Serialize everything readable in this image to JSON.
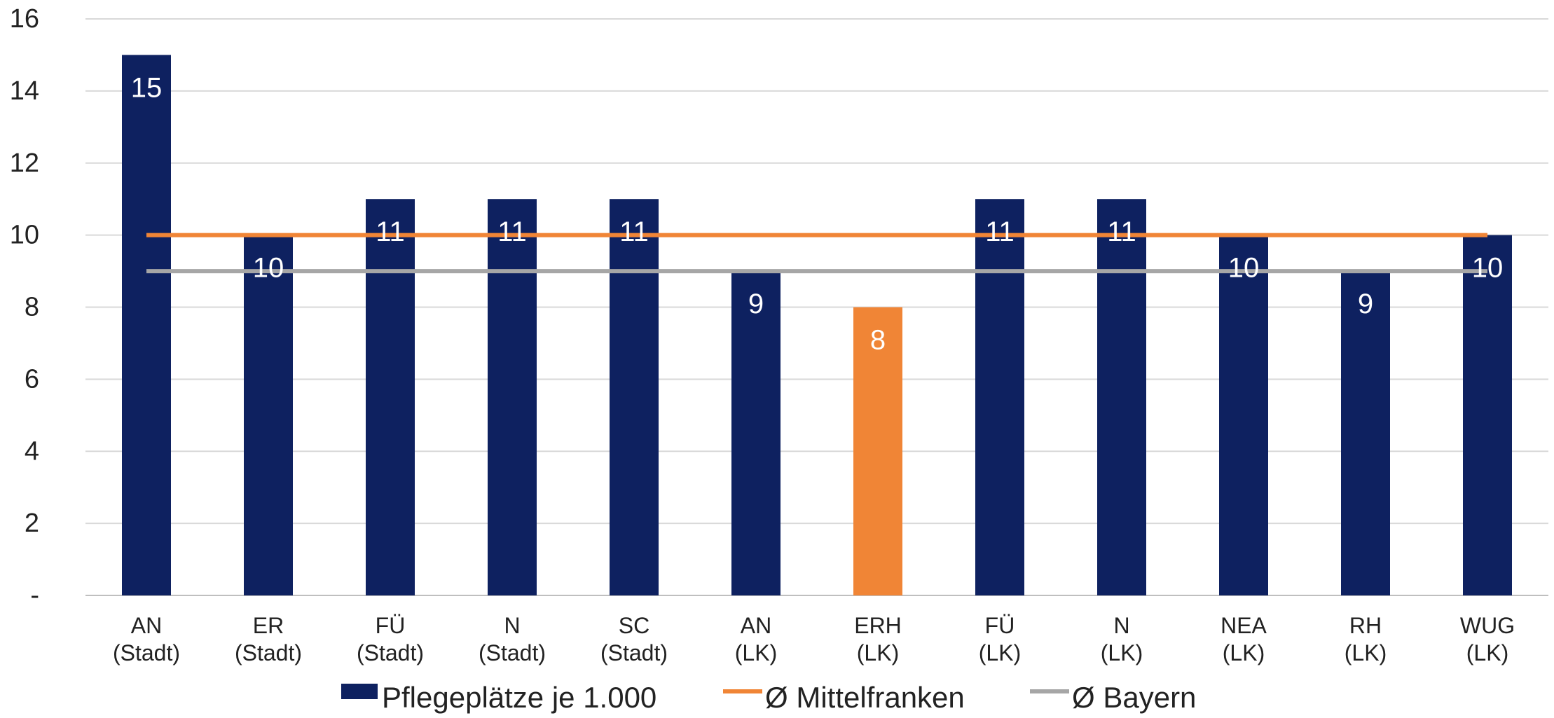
{
  "chart_data": {
    "type": "bar",
    "categories": [
      [
        "AN",
        "(Stadt)"
      ],
      [
        "ER",
        "(Stadt)"
      ],
      [
        "FÜ",
        "(Stadt)"
      ],
      [
        "N",
        "(Stadt)"
      ],
      [
        "SC",
        "(Stadt)"
      ],
      [
        "AN",
        "(LK)"
      ],
      [
        "ERH",
        "(LK)"
      ],
      [
        "FÜ",
        "(LK)"
      ],
      [
        "N",
        "(LK)"
      ],
      [
        "NEA",
        "(LK)"
      ],
      [
        "RH",
        "(LK)"
      ],
      [
        "WUG",
        "(LK)"
      ]
    ],
    "series": [
      {
        "name": "Pflegeplätze je 1.000",
        "kind": "bar",
        "values": [
          15,
          10,
          11,
          11,
          11,
          9,
          8,
          11,
          11,
          10,
          9,
          10
        ],
        "data_labels": [
          "15",
          "10",
          "11",
          "11",
          "11",
          "9",
          "8",
          "11",
          "11",
          "10",
          "9",
          "10"
        ],
        "color": "#0E2160",
        "highlight_index": 6,
        "highlight_color": "#F08536"
      },
      {
        "name": "Ø Mittelfranken",
        "kind": "line",
        "value": 10,
        "color": "#F08536"
      },
      {
        "name": "Ø Bayern",
        "kind": "line",
        "value": 9,
        "color": "#A6A6A6"
      }
    ],
    "y_ticks": [
      "-",
      "2",
      "4",
      "6",
      "8",
      "10",
      "12",
      "14",
      "16"
    ],
    "ylim": [
      0,
      16
    ],
    "grid": true,
    "legend_position": "bottom",
    "title": "",
    "xlabel": "",
    "ylabel": ""
  }
}
